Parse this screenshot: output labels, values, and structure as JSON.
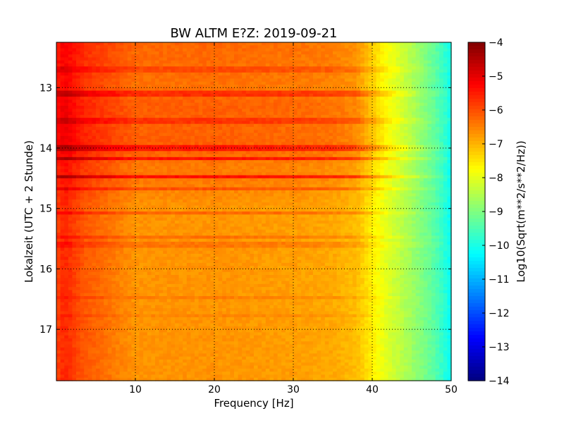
{
  "chart_data": {
    "type": "heatmap",
    "title": "BW ALTM E?Z: 2019-09-21",
    "xlabel": "Frequency [Hz]",
    "ylabel": "Lokalzeit (UTC + 2 Stunde)",
    "xlim": [
      0,
      50
    ],
    "ylim": [
      17.85,
      12.25
    ],
    "x_ticks": [
      10,
      20,
      30,
      40,
      50
    ],
    "x_tick_labels": [
      "10",
      "20",
      "30",
      "40",
      "50"
    ],
    "y_ticks": [
      13,
      14,
      15,
      16,
      17
    ],
    "y_tick_labels": [
      "13",
      "14",
      "15",
      "16",
      "17"
    ],
    "grid": true,
    "colorbar": {
      "label": "Log10(Sqrt(m**2/s**2/Hz))",
      "range": [
        -14,
        -4
      ],
      "ticks": [
        -4,
        -5,
        -6,
        -7,
        -8,
        -9,
        -10,
        -11,
        -12,
        -13,
        -14
      ],
      "tick_labels": [
        "−4",
        "−5",
        "−6",
        "−7",
        "−8",
        "−9",
        "−10",
        "−11",
        "−12",
        "−13",
        "−14"
      ],
      "colormap": "jet"
    },
    "frequency_profile": {
      "frequency_hz": [
        0,
        1,
        3.5,
        10,
        20,
        30,
        35,
        38,
        40,
        42,
        45,
        48,
        50
      ],
      "typical_value": [
        -5.9,
        -5.6,
        -6.1,
        -6.7,
        -6.7,
        -6.8,
        -6.9,
        -7.1,
        -7.6,
        -8.1,
        -8.7,
        -9.4,
        -10.2
      ]
    },
    "time_profile_offset": {
      "time_h": [
        12.25,
        13.0,
        13.3,
        13.6,
        14.0,
        14.3,
        14.5,
        14.7,
        15.0,
        16.0,
        17.0,
        17.85
      ],
      "offset": [
        0.45,
        0.35,
        0.55,
        0.5,
        0.55,
        0.25,
        0.3,
        0.15,
        0.0,
        0.0,
        0.0,
        0.0
      ]
    },
    "bands": [
      {
        "time_h": 12.7,
        "offset": 0.35
      },
      {
        "time_h": 13.1,
        "offset": 0.6
      },
      {
        "time_h": 13.55,
        "offset": 0.45
      },
      {
        "time_h": 14.0,
        "offset": 0.7
      },
      {
        "time_h": 14.18,
        "offset": 0.9
      },
      {
        "time_h": 14.48,
        "offset": 1.0
      },
      {
        "time_h": 14.68,
        "offset": 0.5
      },
      {
        "time_h": 15.08,
        "offset": 0.45
      },
      {
        "time_h": 15.47,
        "offset": 0.35
      },
      {
        "time_h": 15.6,
        "offset": 0.3
      },
      {
        "time_h": 16.47,
        "offset": 0.2
      },
      {
        "time_h": 16.78,
        "offset": 0.15
      }
    ]
  }
}
